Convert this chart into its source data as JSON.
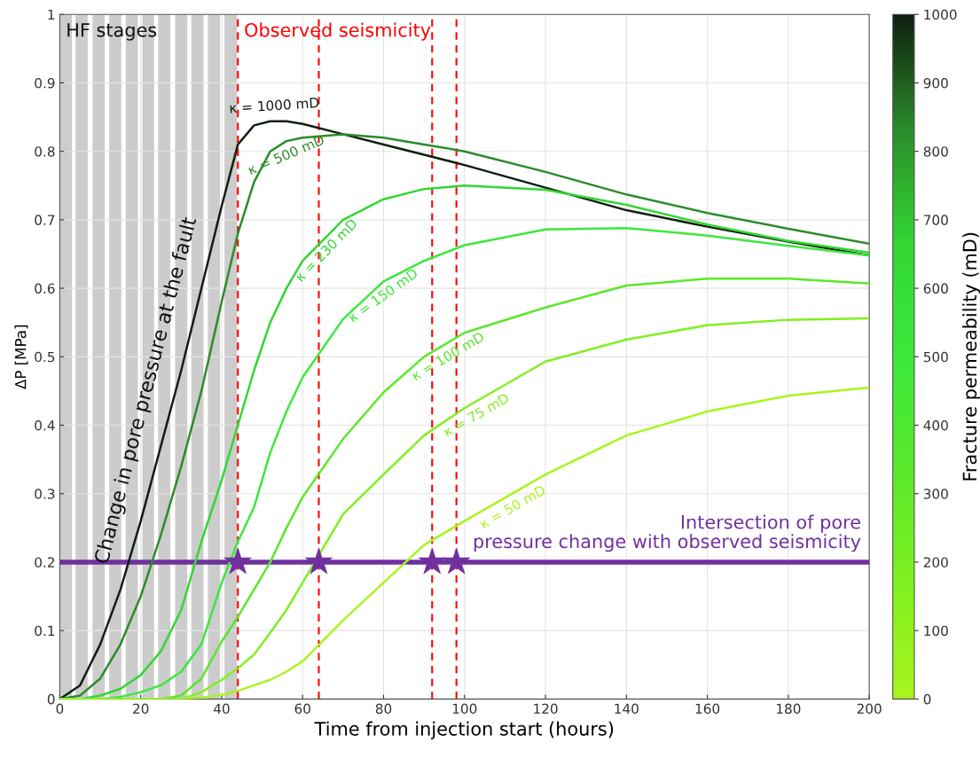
{
  "chart_data": {
    "type": "line",
    "xlabel": "Time from injection start (hours)",
    "ylabel": "ΔP [MPa]",
    "clabel": "Fracture permeability (mD)",
    "x": [
      0,
      5,
      10,
      15,
      20,
      25,
      30,
      35,
      40,
      44,
      48,
      52,
      56,
      60,
      70,
      80,
      90,
      100,
      120,
      140,
      160,
      180,
      200
    ],
    "series": [
      {
        "name": "κ = 1000 mD",
        "color": "#0f1f0f",
        "values": [
          0,
          0.02,
          0.08,
          0.16,
          0.26,
          0.37,
          0.48,
          0.6,
          0.72,
          0.81,
          0.838,
          0.844,
          0.844,
          0.84,
          0.825,
          0.81,
          0.795,
          0.78,
          0.747,
          0.714,
          0.69,
          0.668,
          0.648
        ]
      },
      {
        "name": "κ = 500 mD",
        "color": "#2b8c2b",
        "values": [
          0,
          0.005,
          0.03,
          0.08,
          0.15,
          0.24,
          0.34,
          0.45,
          0.58,
          0.68,
          0.755,
          0.8,
          0.815,
          0.82,
          0.825,
          0.82,
          0.81,
          0.8,
          0.77,
          0.737,
          0.71,
          0.687,
          0.665
        ]
      },
      {
        "name": "κ = 230 mD",
        "color": "#33d633",
        "values": [
          0,
          0,
          0.005,
          0.015,
          0.035,
          0.07,
          0.13,
          0.23,
          0.32,
          0.4,
          0.48,
          0.55,
          0.6,
          0.64,
          0.7,
          0.73,
          0.745,
          0.75,
          0.744,
          0.722,
          0.693,
          0.669,
          0.652
        ]
      },
      {
        "name": "κ = 150 mD",
        "color": "#3ce83c",
        "values": [
          0,
          0,
          0,
          0.003,
          0.01,
          0.02,
          0.04,
          0.08,
          0.17,
          0.23,
          0.28,
          0.36,
          0.42,
          0.47,
          0.555,
          0.61,
          0.64,
          0.663,
          0.686,
          0.688,
          0.677,
          0.662,
          0.648
        ]
      },
      {
        "name": "κ = 100 mD",
        "color": "#5ae82a",
        "values": [
          0,
          0,
          0,
          0,
          0,
          0,
          0.005,
          0.03,
          0.084,
          0.12,
          0.16,
          0.2,
          0.25,
          0.295,
          0.38,
          0.448,
          0.5,
          0.535,
          0.572,
          0.604,
          0.614,
          0.614,
          0.607
        ]
      },
      {
        "name": "κ = 75 mD",
        "color": "#80f020",
        "values": [
          0,
          0,
          0,
          0,
          0,
          0,
          0,
          0.01,
          0.028,
          0.045,
          0.065,
          0.097,
          0.13,
          0.17,
          0.27,
          0.328,
          0.385,
          0.425,
          0.493,
          0.525,
          0.546,
          0.554,
          0.556
        ]
      },
      {
        "name": "κ = 50 mD",
        "color": "#a8f51e",
        "values": [
          0,
          0,
          0,
          0,
          0,
          0,
          0,
          0.002,
          0.006,
          0.012,
          0.02,
          0.028,
          0.04,
          0.055,
          0.115,
          0.17,
          0.225,
          0.26,
          0.328,
          0.385,
          0.42,
          0.443,
          0.455
        ]
      },
      {
        "type": "scatter",
        "marker": "star",
        "color": "#7030a0",
        "x": [
          44,
          64,
          92,
          98
        ],
        "values": [
          0.2,
          0.2,
          0.2,
          0.2
        ]
      }
    ],
    "clim": [
      0,
      1000
    ],
    "cticks": [
      0,
      100,
      200,
      300,
      400,
      500,
      600,
      700,
      800,
      900,
      1000
    ],
    "xlim": [
      0,
      200
    ],
    "xticks": [
      0,
      20,
      40,
      60,
      80,
      100,
      120,
      140,
      160,
      180,
      200
    ],
    "ylim": [
      0,
      1
    ],
    "yticks": [
      0,
      0.1,
      0.2,
      0.3,
      0.4,
      0.5,
      0.6,
      0.7,
      0.8,
      0.9,
      1
    ],
    "grid": true,
    "line_style": "solid",
    "marker": "none",
    "bands": [
      {
        "axis": "x",
        "from": 0,
        "to": 3.0,
        "label": "HF stages",
        "color": "#cccccc"
      },
      {
        "axis": "x",
        "from": 3.9,
        "to": 6.9,
        "label": null,
        "color": "#cccccc"
      },
      {
        "axis": "x",
        "from": 8.1,
        "to": 11.1,
        "label": null,
        "color": "#cccccc"
      },
      {
        "axis": "x",
        "from": 12.2,
        "to": 15.2,
        "label": null,
        "color": "#cccccc"
      },
      {
        "axis": "x",
        "from": 16.3,
        "to": 19.3,
        "label": null,
        "color": "#cccccc"
      },
      {
        "axis": "x",
        "from": 20.4,
        "to": 23.3,
        "label": null,
        "color": "#cccccc"
      },
      {
        "axis": "x",
        "from": 24.3,
        "to": 27.3,
        "label": null,
        "color": "#cccccc"
      },
      {
        "axis": "x",
        "from": 28.5,
        "to": 31.5,
        "label": null,
        "color": "#cccccc"
      },
      {
        "axis": "x",
        "from": 32.5,
        "to": 35.5,
        "label": null,
        "color": "#cccccc"
      },
      {
        "axis": "x",
        "from": 36.6,
        "to": 39.6,
        "label": null,
        "color": "#cccccc"
      },
      {
        "axis": "x",
        "from": 40.7,
        "to": 43.8,
        "label": null,
        "color": "#cccccc"
      }
    ],
    "ref_lines": [
      {
        "axis": "x",
        "value": 44,
        "label": "Observed seismicity",
        "color": "#ff0000",
        "line_style": "dashed"
      },
      {
        "axis": "x",
        "value": 64,
        "label": null,
        "color": "#ff0000",
        "line_style": "dashed"
      },
      {
        "axis": "x",
        "value": 92,
        "label": null,
        "color": "#ff0000",
        "line_style": "dashed"
      },
      {
        "axis": "x",
        "value": 98,
        "label": null,
        "color": "#ff0000",
        "line_style": "dashed"
      },
      {
        "axis": "y",
        "value": 0.2,
        "label": "Intersection of pore pressure change with observed seismicity",
        "color": "#7030a0",
        "line_style": "solid"
      }
    ],
    "annotations": [
      "Change in pore pressure at the fault"
    ]
  }
}
